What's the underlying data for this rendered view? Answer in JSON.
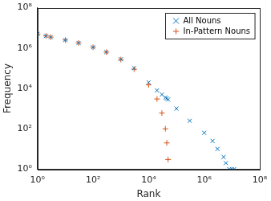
{
  "chart_data": {
    "type": "scatter",
    "x_label": "Rank",
    "y_label": "Frequency",
    "log": true,
    "grid": false,
    "legend": "top right",
    "xlim": [
      1,
      100000000
    ],
    "ylim": [
      1,
      100000000
    ],
    "xticks": [
      {
        "value": 1,
        "label": "10⁰"
      },
      {
        "value": 100,
        "label": "10²"
      },
      {
        "value": 10000,
        "label": "10⁴"
      },
      {
        "value": 1000000,
        "label": "10⁶"
      },
      {
        "value": 100000000,
        "label": "10⁸"
      }
    ],
    "yticks": [
      {
        "value": 1,
        "label": "10⁰"
      },
      {
        "value": 100,
        "label": "10²"
      },
      {
        "value": 10000,
        "label": "10⁴"
      },
      {
        "value": 1000000,
        "label": "10⁶"
      },
      {
        "value": 100000000,
        "label": "10⁸"
      }
    ],
    "x": [
      1,
      2,
      3,
      10,
      30,
      100,
      300,
      1000,
      3000,
      10000,
      20000,
      30000,
      40000,
      45000,
      50000,
      100000,
      300000,
      1000000,
      2000000,
      3000000,
      5000000,
      6000000,
      8000000,
      10000000,
      12000000
    ],
    "series": [
      {
        "name": "All Nouns",
        "color": "#0072bd",
        "marker": "x",
        "values": [
          5000000,
          4000000,
          3500000,
          2500000,
          1800000,
          1100000,
          630000,
          280000,
          100000,
          20000,
          8000,
          5000,
          3500,
          3200,
          2800,
          1000,
          250,
          63,
          25,
          10,
          4,
          2,
          1,
          1,
          1
        ]
      },
      {
        "name": "In-Pattern Nouns",
        "color": "#d95319",
        "marker": "+",
        "values": [
          5000000,
          4000000,
          3500000,
          2500000,
          1800000,
          1100000,
          630000,
          270000,
          90000,
          15000,
          3000,
          600,
          100,
          20,
          3,
          null,
          null,
          null,
          null,
          null,
          null,
          null,
          null,
          null,
          null
        ]
      }
    ]
  }
}
